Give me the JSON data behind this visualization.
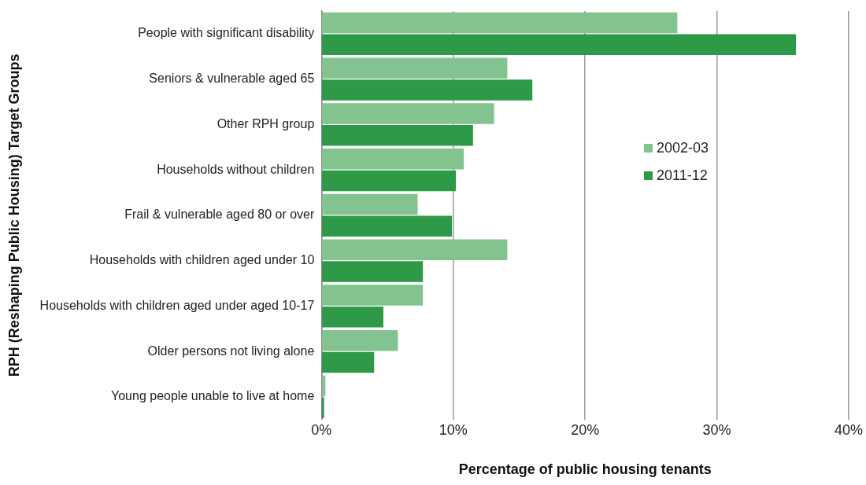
{
  "chart_data": {
    "type": "bar",
    "orientation": "horizontal",
    "xlabel": "Percentage of public housing tenants",
    "ylabel": "RPH (Reshaping Public Housing) Target Groups",
    "categories": [
      "People with significant disability",
      "Seniors & vulnerable aged 65",
      "Other RPH group",
      "Households without children",
      "Frail & vulnerable aged 80 or over",
      "Households with children aged under 10",
      "Households with children aged under aged 10-17",
      "Older persons not living alone",
      "Young people unable to live at home"
    ],
    "series": [
      {
        "name": "2002-03",
        "color": "#82c38f",
        "values": [
          27.0,
          14.1,
          13.1,
          10.8,
          7.3,
          14.1,
          7.7,
          5.8,
          0.3
        ]
      },
      {
        "name": "2011-12",
        "color": "#2e9a47",
        "values": [
          36.0,
          16.0,
          11.5,
          10.2,
          9.9,
          7.7,
          4.7,
          4.0,
          0.2
        ]
      }
    ],
    "xlim": [
      0,
      40
    ],
    "xticks": [
      {
        "value": 0,
        "label": "0%"
      },
      {
        "value": 10,
        "label": "10%"
      },
      {
        "value": 20,
        "label": "20%"
      },
      {
        "value": 30,
        "label": "30%"
      },
      {
        "value": 40,
        "label": "40%"
      }
    ],
    "grid": "x",
    "legend": "right"
  }
}
